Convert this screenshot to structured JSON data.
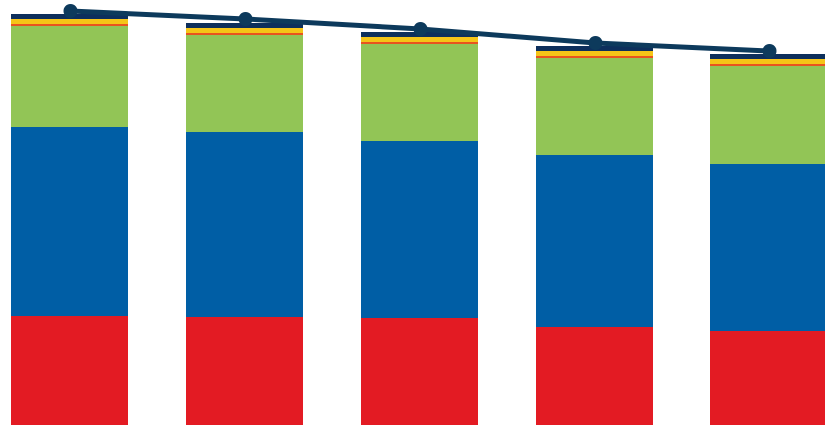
{
  "chart_data": {
    "type": "bar",
    "stacked": true,
    "categories": [
      "",
      "",
      "",
      "",
      ""
    ],
    "ylim": [
      0,
      425
    ],
    "grid": false,
    "legend": "none",
    "series": [
      {
        "color": "#e31b23",
        "values": [
          109,
          108,
          107,
          98,
          94
        ]
      },
      {
        "color": "#005ea5",
        "values": [
          189,
          185,
          177,
          172,
          167
        ]
      },
      {
        "color": "#92c556",
        "values": [
          101,
          97,
          97,
          97,
          98
        ]
      },
      {
        "color": "#e8541f",
        "values": [
          2,
          2,
          2,
          2,
          2
        ]
      },
      {
        "color": "#f5c518",
        "values": [
          5,
          5,
          5,
          5,
          5
        ]
      },
      {
        "color": "#0d2f5c",
        "values": [
          5,
          5,
          5,
          5,
          5
        ]
      }
    ],
    "line": {
      "color": "#0d3a5c",
      "values": [
        414,
        406,
        396,
        382,
        374
      ]
    }
  }
}
